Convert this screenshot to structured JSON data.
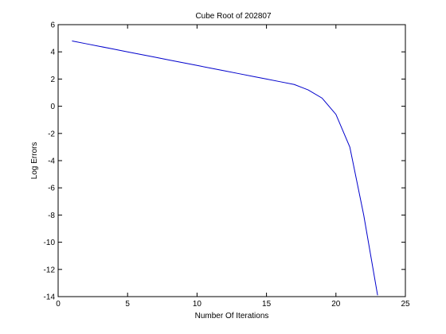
{
  "chart_data": {
    "type": "line",
    "title": "Cube Root of 202807",
    "xlabel": "Number Of Iterations",
    "ylabel": "Log Errors",
    "xlim": [
      0,
      25
    ],
    "ylim": [
      -14,
      6
    ],
    "xticks": [
      0,
      5,
      10,
      15,
      20,
      25
    ],
    "yticks": [
      6,
      4,
      2,
      0,
      -2,
      -4,
      -6,
      -8,
      -10,
      -12,
      -14
    ],
    "grid": false,
    "series": [
      {
        "color": "#0000cc",
        "x": [
          1,
          2,
          3,
          4,
          5,
          6,
          7,
          8,
          9,
          10,
          11,
          12,
          13,
          14,
          15,
          16,
          17,
          18,
          19,
          20,
          21,
          22,
          23
        ],
        "y": [
          4.8,
          4.6,
          4.4,
          4.2,
          4.0,
          3.8,
          3.6,
          3.4,
          3.2,
          3.0,
          2.8,
          2.6,
          2.4,
          2.2,
          2.0,
          1.8,
          1.6,
          1.2,
          0.6,
          -0.6,
          -3.0,
          -8.0,
          -13.9
        ]
      }
    ]
  }
}
